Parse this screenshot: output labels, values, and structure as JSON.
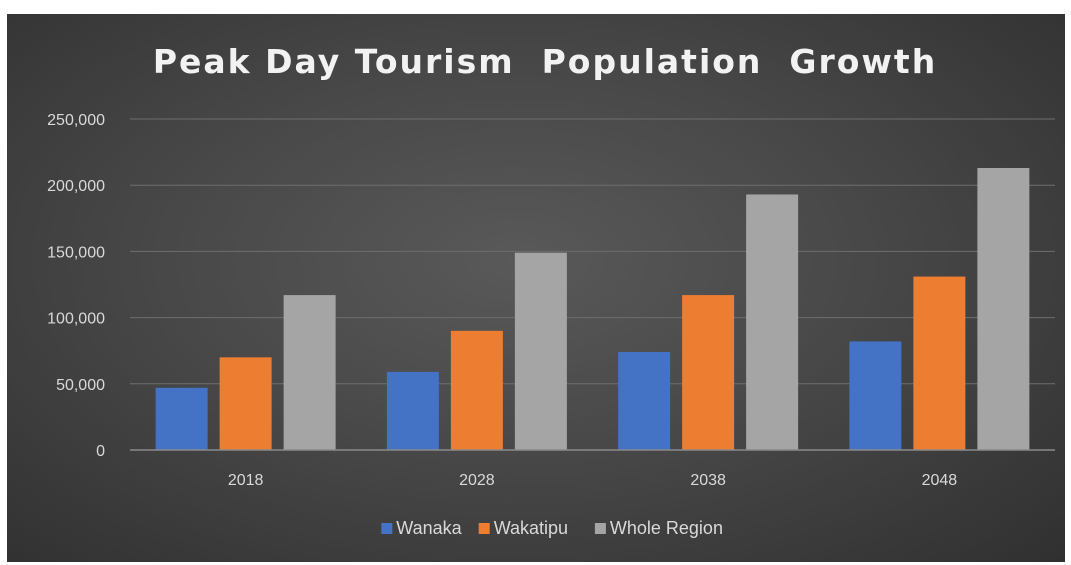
{
  "chart_data": {
    "type": "bar",
    "title": "Peak Day Tourism  Population  Growth",
    "categories": [
      "2018",
      "2028",
      "2038",
      "2048"
    ],
    "series": [
      {
        "name": "Wanaka",
        "color": "#4472c4",
        "values": [
          47000,
          59000,
          74000,
          82000
        ]
      },
      {
        "name": "Wakatipu",
        "color": "#ed7d31",
        "values": [
          70000,
          90000,
          117000,
          131000
        ]
      },
      {
        "name": "Whole Region",
        "color": "#a5a5a5",
        "values": [
          117000,
          149000,
          193000,
          213000
        ]
      }
    ],
    "yticks": [
      "0",
      "50,000",
      "100,000",
      "150,000",
      "200,000",
      "250,000"
    ],
    "ylim": [
      0,
      250000
    ],
    "grid": true,
    "legend_position": "bottom"
  }
}
